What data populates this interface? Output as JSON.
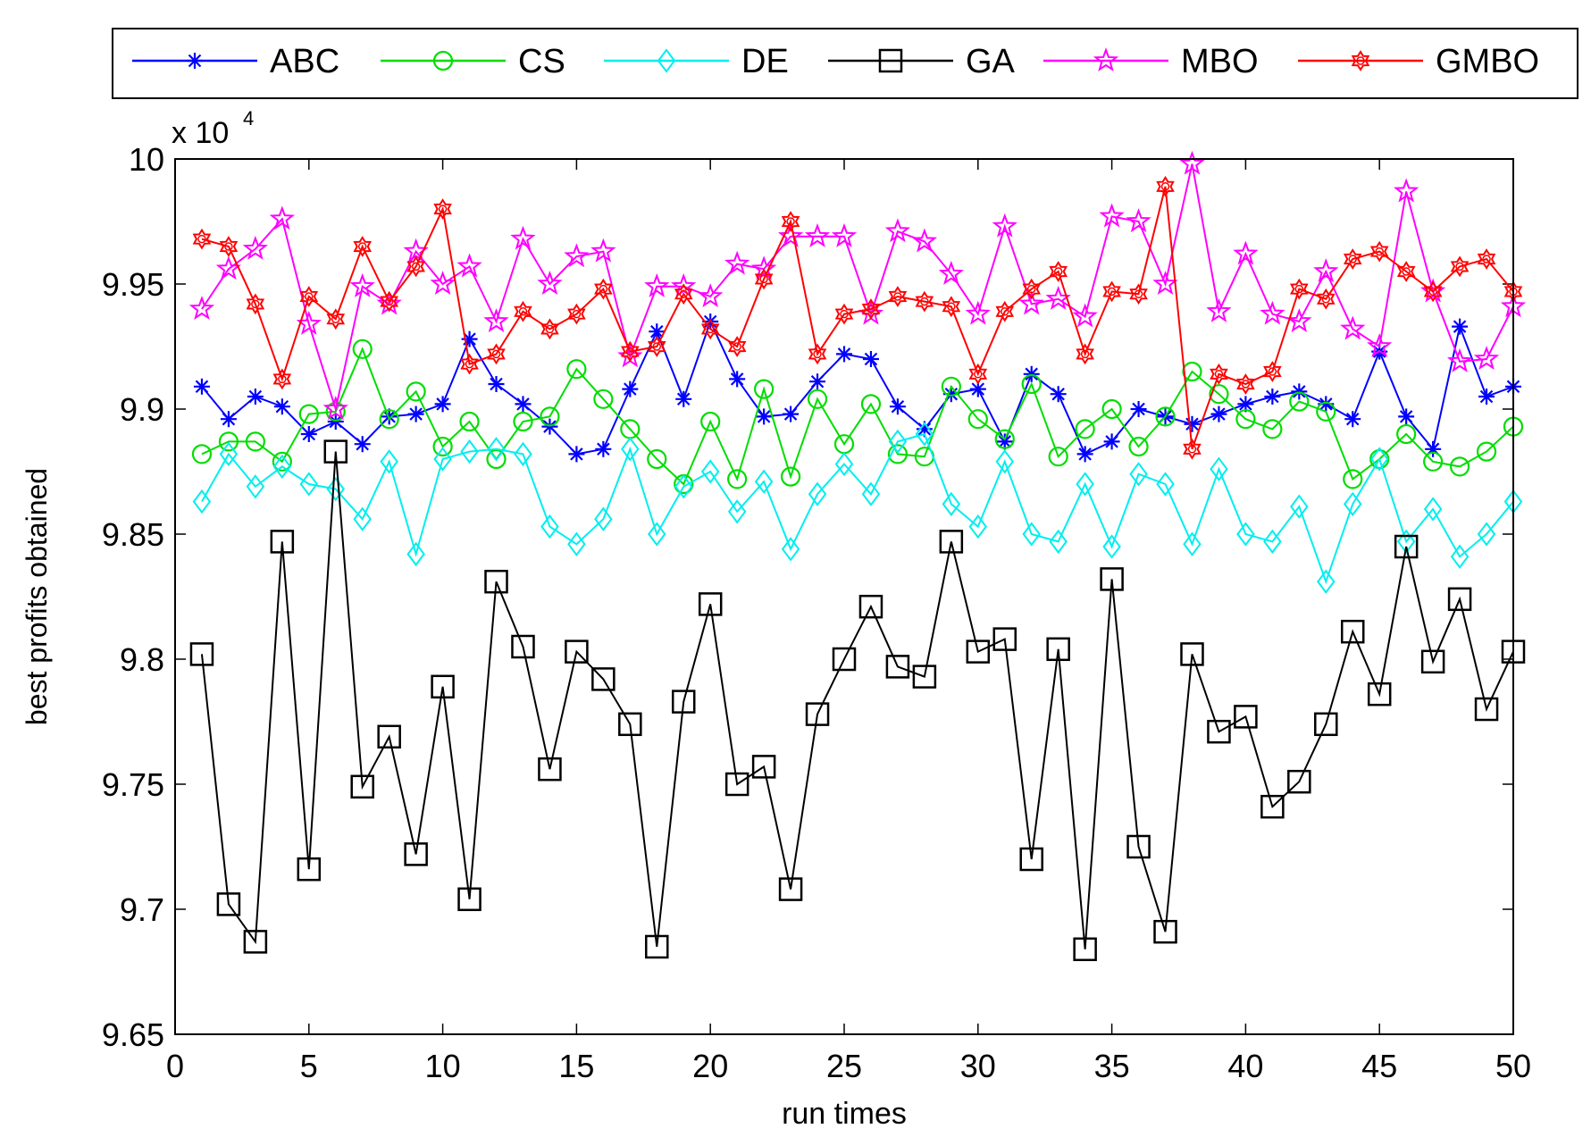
{
  "chart_data": {
    "type": "line",
    "xlabel": "run times",
    "ylabel": "best profits obtained",
    "y_scale_label": "x 10",
    "y_scale_exponent": "4",
    "xlim": [
      0,
      50
    ],
    "ylim": [
      9.65,
      10
    ],
    "x_ticks": [
      "0",
      "5",
      "10",
      "15",
      "20",
      "25",
      "30",
      "35",
      "40",
      "45",
      "50"
    ],
    "y_ticks": [
      "9.65",
      "9.7",
      "9.75",
      "9.8",
      "9.85",
      "9.9",
      "9.95",
      "10"
    ],
    "x_tick_values": [
      0,
      5,
      10,
      15,
      20,
      25,
      30,
      35,
      40,
      45,
      50
    ],
    "y_tick_values": [
      9.65,
      9.7,
      9.75,
      9.8,
      9.85,
      9.9,
      9.95,
      10
    ],
    "legend_position": "top, outside",
    "x": [
      1,
      2,
      3,
      4,
      5,
      6,
      7,
      8,
      9,
      10,
      11,
      12,
      13,
      14,
      15,
      16,
      17,
      18,
      19,
      20,
      21,
      22,
      23,
      24,
      25,
      26,
      27,
      28,
      29,
      30,
      31,
      32,
      33,
      34,
      35,
      36,
      37,
      38,
      39,
      40,
      41,
      42,
      43,
      44,
      45,
      46,
      47,
      48,
      49,
      50
    ],
    "series": [
      {
        "name": "ABC",
        "color": "#0000ff",
        "marker": "star",
        "values": [
          9.909,
          9.896,
          9.905,
          9.901,
          9.89,
          9.895,
          9.886,
          9.897,
          9.898,
          9.902,
          9.928,
          9.91,
          9.902,
          9.893,
          9.882,
          9.884,
          9.908,
          9.931,
          9.904,
          9.935,
          9.912,
          9.897,
          9.898,
          9.911,
          9.922,
          9.92,
          9.901,
          9.892,
          9.906,
          9.908,
          9.887,
          9.914,
          9.906,
          9.882,
          9.887,
          9.9,
          9.897,
          9.894,
          9.898,
          9.902,
          9.905,
          9.907,
          9.902,
          9.896,
          9.923,
          9.897,
          9.884,
          9.933,
          9.905,
          9.909
        ]
      },
      {
        "name": "CS",
        "color": "#00dd00",
        "marker": "circle",
        "values": [
          9.882,
          9.887,
          9.887,
          9.879,
          9.898,
          9.899,
          9.924,
          9.896,
          9.907,
          9.885,
          9.895,
          9.88,
          9.895,
          9.897,
          9.916,
          9.904,
          9.892,
          9.88,
          9.87,
          9.895,
          9.872,
          9.908,
          9.873,
          9.904,
          9.886,
          9.902,
          9.882,
          9.881,
          9.909,
          9.896,
          9.888,
          9.91,
          9.881,
          9.892,
          9.9,
          9.885,
          9.897,
          9.915,
          9.906,
          9.896,
          9.892,
          9.903,
          9.899,
          9.872,
          9.88,
          9.89,
          9.879,
          9.877,
          9.883,
          9.893
        ]
      },
      {
        "name": "DE",
        "color": "#00eeee",
        "marker": "diamond",
        "values": [
          9.863,
          9.882,
          9.869,
          9.877,
          9.87,
          9.868,
          9.856,
          9.879,
          9.842,
          9.88,
          9.883,
          9.884,
          9.882,
          9.853,
          9.846,
          9.856,
          9.884,
          9.85,
          9.869,
          9.875,
          9.859,
          9.871,
          9.844,
          9.866,
          9.878,
          9.866,
          9.887,
          9.89,
          9.862,
          9.853,
          9.879,
          9.85,
          9.847,
          9.87,
          9.845,
          9.874,
          9.87,
          9.846,
          9.876,
          9.85,
          9.847,
          9.861,
          9.831,
          9.862,
          9.88,
          9.847,
          9.86,
          9.841,
          9.85,
          9.863
        ]
      },
      {
        "name": "GA",
        "color": "#000000",
        "marker": "square",
        "values": [
          9.802,
          9.702,
          9.687,
          9.847,
          9.716,
          9.883,
          9.749,
          9.769,
          9.722,
          9.789,
          9.704,
          9.831,
          9.805,
          9.756,
          9.803,
          9.792,
          9.774,
          9.685,
          9.783,
          9.822,
          9.75,
          9.757,
          9.708,
          9.778,
          9.8,
          9.821,
          9.797,
          9.793,
          9.847,
          9.803,
          9.808,
          9.72,
          9.804,
          9.684,
          9.832,
          9.725,
          9.691,
          9.802,
          9.771,
          9.777,
          9.741,
          9.751,
          9.774,
          9.811,
          9.786,
          9.845,
          9.799,
          9.824,
          9.78,
          9.803
        ]
      },
      {
        "name": "MBO",
        "color": "#ff00ff",
        "marker": "pentagram",
        "values": [
          9.94,
          9.956,
          9.964,
          9.976,
          9.934,
          9.9,
          9.949,
          9.942,
          9.963,
          9.95,
          9.957,
          9.935,
          9.968,
          9.95,
          9.961,
          9.963,
          9.921,
          9.949,
          9.949,
          9.945,
          9.958,
          9.956,
          9.969,
          9.969,
          9.969,
          9.938,
          9.971,
          9.967,
          9.954,
          9.938,
          9.973,
          9.942,
          9.944,
          9.937,
          9.977,
          9.975,
          9.95,
          9.998,
          9.939,
          9.962,
          9.938,
          9.935,
          9.955,
          9.932,
          9.925,
          9.987,
          9.947,
          9.919,
          9.92,
          9.941
        ]
      },
      {
        "name": "GMBO",
        "color": "#ff0000",
        "marker": "hexagram",
        "values": [
          9.968,
          9.965,
          9.942,
          9.912,
          9.945,
          9.936,
          9.965,
          9.943,
          9.957,
          9.98,
          9.918,
          9.922,
          9.939,
          9.932,
          9.938,
          9.948,
          9.923,
          9.925,
          9.946,
          9.932,
          9.925,
          9.952,
          9.975,
          9.922,
          9.938,
          9.94,
          9.945,
          9.943,
          9.941,
          9.914,
          9.939,
          9.948,
          9.955,
          9.922,
          9.947,
          9.946,
          9.989,
          9.884,
          9.914,
          9.91,
          9.915,
          9.948,
          9.944,
          9.96,
          9.963,
          9.955,
          9.947,
          9.957,
          9.96,
          9.947
        ]
      }
    ]
  }
}
